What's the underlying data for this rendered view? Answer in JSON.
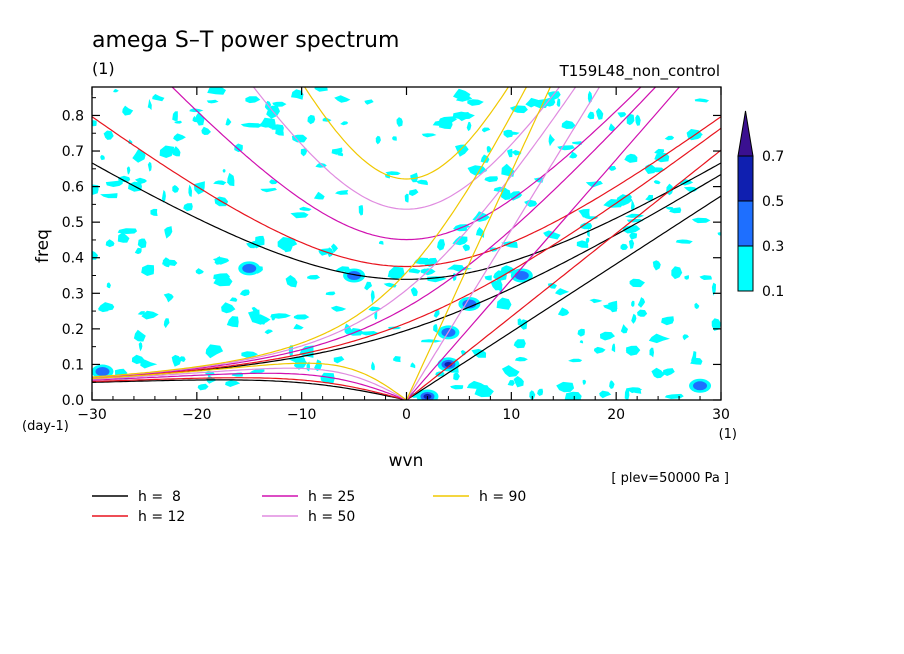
{
  "chart_data": {
    "type": "heatmap",
    "title": "amega S–T power spectrum",
    "units_label": "(1)",
    "run_label": "T159L48_non_control",
    "xlabel": "wvn",
    "ylabel": "freq",
    "x_unit": "(1)",
    "y_unit": "(day-1)",
    "level_label": "[ plev=50000 Pa ]",
    "xlim": [
      -30,
      30
    ],
    "ylim": [
      0,
      0.88
    ],
    "x_ticks": [
      "−30",
      "−20",
      "−10",
      "0",
      "10",
      "20",
      "30"
    ],
    "y_ticks": [
      "0.0",
      "0.1",
      "0.2",
      "0.3",
      "0.4",
      "0.5",
      "0.6",
      "0.7",
      "0.8"
    ],
    "colorbar": {
      "levels": [
        "0.1",
        "0.3",
        "0.5",
        "0.7"
      ],
      "colors": [
        "#00ffff",
        "#1e6fff",
        "#0f1fb0",
        "#3a1090"
      ]
    },
    "series": [
      {
        "name": "h =  8",
        "color": "#000000",
        "h": 8
      },
      {
        "name": "h = 12",
        "color": "#e8141e",
        "h": 12
      },
      {
        "name": "h = 25",
        "color": "#d010b0",
        "h": 25
      },
      {
        "name": "h = 50",
        "color": "#e08ce0",
        "h": 50
      },
      {
        "name": "h = 90",
        "color": "#f0c800",
        "h": 90
      }
    ],
    "hotspots": [
      {
        "x": 2,
        "y": 0.01,
        "level": 3
      },
      {
        "x": 4,
        "y": 0.1,
        "level": 3
      },
      {
        "x": 4,
        "y": 0.19,
        "level": 2
      },
      {
        "x": -5,
        "y": 0.35,
        "level": 2
      },
      {
        "x": 11,
        "y": 0.35,
        "level": 2
      },
      {
        "x": 6,
        "y": 0.27,
        "level": 2
      },
      {
        "x": -29,
        "y": 0.08,
        "level": 2
      },
      {
        "x": 28,
        "y": 0.04,
        "level": 2
      },
      {
        "x": -15,
        "y": 0.37,
        "level": 1
      }
    ]
  }
}
